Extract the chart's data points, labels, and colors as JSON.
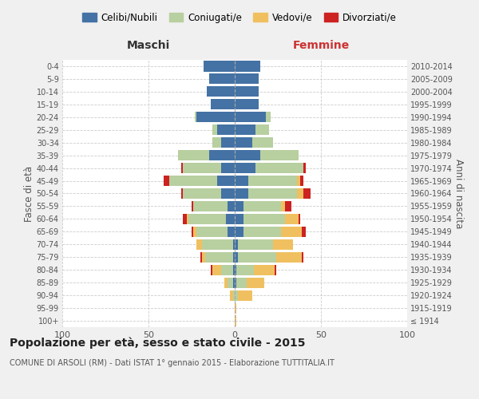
{
  "age_groups": [
    "100+",
    "95-99",
    "90-94",
    "85-89",
    "80-84",
    "75-79",
    "70-74",
    "65-69",
    "60-64",
    "55-59",
    "50-54",
    "45-49",
    "40-44",
    "35-39",
    "30-34",
    "25-29",
    "20-24",
    "15-19",
    "10-14",
    "5-9",
    "0-4"
  ],
  "birth_years": [
    "≤ 1914",
    "1915-1919",
    "1920-1924",
    "1925-1929",
    "1930-1934",
    "1935-1939",
    "1940-1944",
    "1945-1949",
    "1950-1954",
    "1955-1959",
    "1960-1964",
    "1965-1969",
    "1970-1974",
    "1975-1979",
    "1980-1984",
    "1985-1989",
    "1990-1994",
    "1995-1999",
    "2000-2004",
    "2005-2009",
    "2010-2014"
  ],
  "colors": {
    "celibi": "#4472a4",
    "coniugati": "#b8cfa0",
    "vedovi": "#f0c060",
    "divorziati": "#cc2222"
  },
  "maschi": {
    "celibi": [
      0,
      0,
      0,
      1,
      1,
      1,
      1,
      4,
      5,
      4,
      8,
      10,
      8,
      15,
      8,
      10,
      22,
      14,
      16,
      15,
      18
    ],
    "coniugati": [
      0,
      0,
      1,
      3,
      7,
      16,
      18,
      18,
      22,
      20,
      22,
      28,
      22,
      18,
      5,
      3,
      1,
      0,
      0,
      0,
      0
    ],
    "vedovi": [
      0,
      0,
      2,
      2,
      5,
      2,
      3,
      2,
      1,
      0,
      0,
      0,
      0,
      0,
      0,
      0,
      0,
      0,
      0,
      0,
      0
    ],
    "divorziati": [
      0,
      0,
      0,
      0,
      1,
      1,
      0,
      1,
      2,
      1,
      1,
      3,
      1,
      0,
      0,
      0,
      0,
      0,
      0,
      0,
      0
    ]
  },
  "femmine": {
    "celibi": [
      0,
      0,
      0,
      1,
      1,
      2,
      2,
      5,
      5,
      5,
      8,
      8,
      12,
      15,
      10,
      12,
      18,
      14,
      14,
      14,
      15
    ],
    "coniugati": [
      0,
      0,
      2,
      6,
      10,
      22,
      20,
      22,
      24,
      22,
      28,
      28,
      28,
      22,
      12,
      8,
      3,
      0,
      0,
      0,
      0
    ],
    "vedovi": [
      1,
      1,
      8,
      10,
      12,
      15,
      12,
      12,
      8,
      2,
      4,
      2,
      0,
      0,
      0,
      0,
      0,
      0,
      0,
      0,
      0
    ],
    "divorziati": [
      0,
      0,
      0,
      0,
      1,
      1,
      0,
      2,
      1,
      4,
      4,
      2,
      1,
      0,
      0,
      0,
      0,
      0,
      0,
      0,
      0
    ]
  },
  "xlim": 100,
  "title": "Popolazione per età, sesso e stato civile - 2015",
  "subtitle": "COMUNE DI ARSOLI (RM) - Dati ISTAT 1° gennaio 2015 - Elaborazione TUTTITALIA.IT",
  "ylabel_left": "Fasce di età",
  "ylabel_right": "Anni di nascita",
  "xlabel_left": "Maschi",
  "xlabel_right": "Femmine",
  "legend_labels": [
    "Celibi/Nubili",
    "Coniugati/e",
    "Vedovi/e",
    "Divorziati/e"
  ],
  "bg_color": "#f0f0f0",
  "plot_bg": "#ffffff"
}
